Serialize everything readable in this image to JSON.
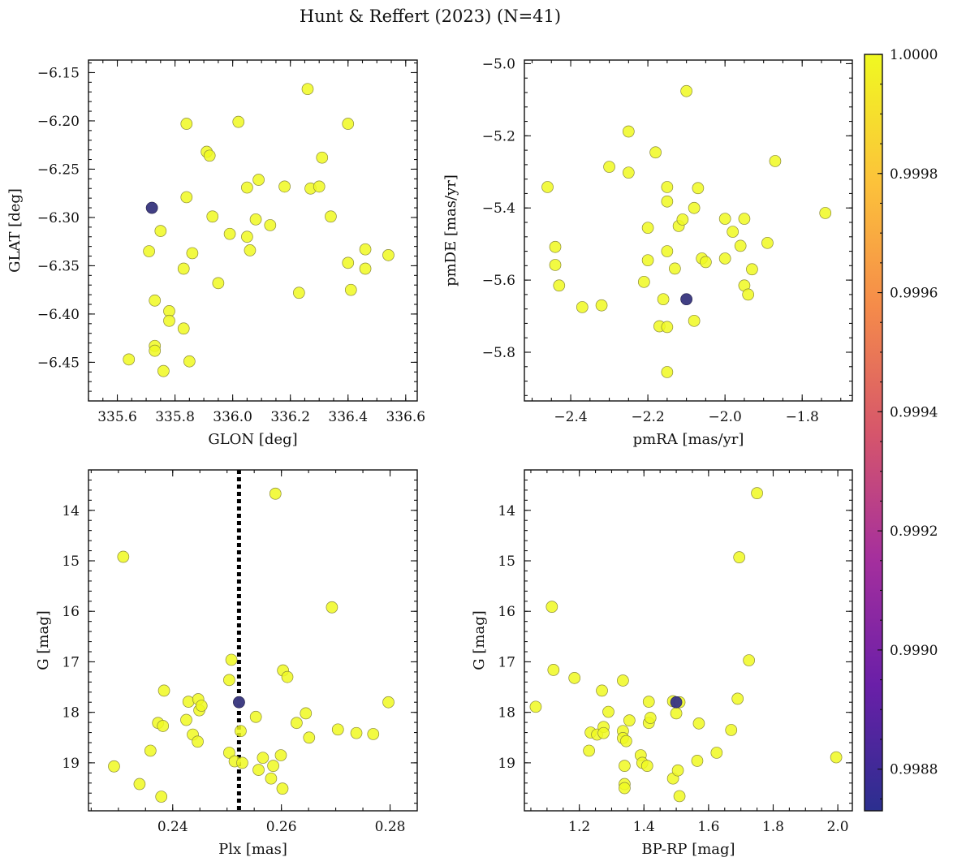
{
  "figure": {
    "title": "Hunt & Reffert (2023) (N=41)"
  },
  "colors": {
    "member": "#f0f921",
    "low": "#2d2a8c",
    "cmap": [
      "#2b2f8f",
      "#6a1fa8",
      "#a52f9d",
      "#d6566b",
      "#f58b4a",
      "#fcc33a",
      "#f0f921"
    ]
  },
  "colorbar": {
    "min": 0.99873,
    "max": 1.0,
    "ticks": [
      "0.9988",
      "0.9990",
      "0.9992",
      "0.9994",
      "0.9996",
      "0.9998",
      "1.0000"
    ]
  },
  "chart_data": [
    {
      "type": "scatter",
      "xlabel": "GLON [deg]",
      "ylabel": "GLAT [deg]",
      "xlim": [
        335.5,
        336.64
      ],
      "ylim": [
        -6.49,
        -6.137
      ],
      "y_inverted": false,
      "xticks": [
        335.6,
        335.8,
        336.0,
        336.2,
        336.4,
        336.6
      ],
      "xtick_labels": [
        "335.6",
        "335.8",
        "336.0",
        "336.2",
        "336.4",
        "336.6"
      ],
      "yticks": [
        -6.15,
        -6.2,
        -6.25,
        -6.3,
        -6.35,
        -6.4,
        -6.45
      ],
      "ytick_labels": [
        "−6.15",
        "−6.20",
        "−6.25",
        "−6.30",
        "−6.35",
        "−6.40",
        "−6.45"
      ],
      "points": [
        [
          335.64,
          -6.447
        ],
        [
          335.71,
          -6.335
        ],
        [
          335.72,
          -6.29
        ],
        [
          335.73,
          -6.386
        ],
        [
          335.73,
          -6.433
        ],
        [
          335.73,
          -6.438
        ],
        [
          335.75,
          -6.314
        ],
        [
          335.76,
          -6.459
        ],
        [
          335.78,
          -6.397
        ],
        [
          335.78,
          -6.407
        ],
        [
          335.83,
          -6.353
        ],
        [
          335.83,
          -6.415
        ],
        [
          335.84,
          -6.279
        ],
        [
          335.84,
          -6.203
        ],
        [
          335.85,
          -6.449
        ],
        [
          335.86,
          -6.337
        ],
        [
          335.91,
          -6.232
        ],
        [
          335.92,
          -6.236
        ],
        [
          335.93,
          -6.299
        ],
        [
          335.95,
          -6.368
        ],
        [
          335.99,
          -6.317
        ],
        [
          336.02,
          -6.201
        ],
        [
          336.05,
          -6.269
        ],
        [
          336.05,
          -6.32
        ],
        [
          336.06,
          -6.334
        ],
        [
          336.08,
          -6.302
        ],
        [
          336.09,
          -6.261
        ],
        [
          336.13,
          -6.308
        ],
        [
          336.18,
          -6.268
        ],
        [
          336.23,
          -6.378
        ],
        [
          336.26,
          -6.167
        ],
        [
          336.27,
          -6.27
        ],
        [
          336.3,
          -6.268
        ],
        [
          336.31,
          -6.238
        ],
        [
          336.34,
          -6.299
        ],
        [
          336.4,
          -6.203
        ],
        [
          336.4,
          -6.347
        ],
        [
          336.41,
          -6.375
        ],
        [
          336.46,
          -6.333
        ],
        [
          336.46,
          -6.353
        ],
        [
          336.54,
          -6.339
        ]
      ],
      "low_points": [
        [
          335.72,
          -6.29
        ]
      ]
    },
    {
      "type": "scatter",
      "xlabel": "pmRA [mas/yr]",
      "ylabel": "pmDE [mas/yr]",
      "xlim": [
        -2.52,
        -1.67
      ],
      "ylim": [
        -5.935,
        -4.99
      ],
      "y_inverted": false,
      "xticks": [
        -2.4,
        -2.2,
        -2.0,
        -1.8
      ],
      "xtick_labels": [
        "−2.4",
        "−2.2",
        "−2.0",
        "−1.8"
      ],
      "yticks": [
        -5.0,
        -5.2,
        -5.4,
        -5.6,
        -5.8
      ],
      "ytick_labels": [
        "−5.0",
        "−5.2",
        "−5.4",
        "−5.6",
        "−5.8"
      ],
      "points": [
        [
          -2.46,
          -5.342
        ],
        [
          -2.44,
          -5.508
        ],
        [
          -2.44,
          -5.558
        ],
        [
          -2.43,
          -5.615
        ],
        [
          -2.37,
          -5.675
        ],
        [
          -2.32,
          -5.67
        ],
        [
          -2.3,
          -5.286
        ],
        [
          -2.25,
          -5.188
        ],
        [
          -2.25,
          -5.302
        ],
        [
          -2.21,
          -5.605
        ],
        [
          -2.2,
          -5.455
        ],
        [
          -2.2,
          -5.545
        ],
        [
          -2.18,
          -5.246
        ],
        [
          -2.17,
          -5.728
        ],
        [
          -2.16,
          -5.653
        ],
        [
          -2.15,
          -5.342
        ],
        [
          -2.15,
          -5.382
        ],
        [
          -2.15,
          -5.52
        ],
        [
          -2.15,
          -5.73
        ],
        [
          -2.15,
          -5.855
        ],
        [
          -2.13,
          -5.568
        ],
        [
          -2.12,
          -5.45
        ],
        [
          -2.11,
          -5.432
        ],
        [
          -2.1,
          -5.653
        ],
        [
          -2.1,
          -5.076
        ],
        [
          -2.08,
          -5.4
        ],
        [
          -2.08,
          -5.713
        ],
        [
          -2.07,
          -5.345
        ],
        [
          -2.06,
          -5.54
        ],
        [
          -2.05,
          -5.55
        ],
        [
          -2.0,
          -5.43
        ],
        [
          -2.0,
          -5.54
        ],
        [
          -1.98,
          -5.466
        ],
        [
          -1.96,
          -5.505
        ],
        [
          -1.95,
          -5.615
        ],
        [
          -1.95,
          -5.43
        ],
        [
          -1.94,
          -5.64
        ],
        [
          -1.93,
          -5.57
        ],
        [
          -1.89,
          -5.497
        ],
        [
          -1.87,
          -5.27
        ],
        [
          -1.74,
          -5.414
        ]
      ],
      "low_points": [
        [
          -2.1,
          -5.653
        ]
      ]
    },
    {
      "type": "scatter",
      "xlabel": "Plx [mas]",
      "ylabel": "G [mag]",
      "xlim": [
        0.2245,
        0.285
      ],
      "ylim": [
        13.2,
        19.95
      ],
      "y_inverted": true,
      "xticks": [
        0.24,
        0.26,
        0.28
      ],
      "xtick_labels": [
        "0.24",
        "0.26",
        "0.28"
      ],
      "yticks": [
        14,
        15,
        16,
        17,
        18,
        19
      ],
      "ytick_labels": [
        "14",
        "15",
        "16",
        "17",
        "18",
        "19"
      ],
      "vline": {
        "x": 0.2522,
        "style": "dotted"
      },
      "points": [
        [
          0.2292,
          19.07
        ],
        [
          0.2309,
          14.92
        ],
        [
          0.2339,
          19.42
        ],
        [
          0.2359,
          18.76
        ],
        [
          0.2379,
          19.67
        ],
        [
          0.2373,
          18.21
        ],
        [
          0.2382,
          18.27
        ],
        [
          0.2384,
          17.57
        ],
        [
          0.2425,
          18.15
        ],
        [
          0.2429,
          17.79
        ],
        [
          0.2437,
          18.44
        ],
        [
          0.2446,
          18.58
        ],
        [
          0.2447,
          17.74
        ],
        [
          0.2449,
          17.96
        ],
        [
          0.2453,
          17.87
        ],
        [
          0.2504,
          17.36
        ],
        [
          0.2504,
          18.8
        ],
        [
          0.2508,
          16.96
        ],
        [
          0.2514,
          18.97
        ],
        [
          0.2522,
          17.8
        ],
        [
          0.2525,
          18.37
        ],
        [
          0.2528,
          19.0
        ],
        [
          0.2553,
          18.09
        ],
        [
          0.2558,
          19.14
        ],
        [
          0.2566,
          18.9
        ],
        [
          0.2581,
          19.31
        ],
        [
          0.2585,
          19.06
        ],
        [
          0.2589,
          13.67
        ],
        [
          0.2599,
          18.85
        ],
        [
          0.2603,
          17.17
        ],
        [
          0.2602,
          19.51
        ],
        [
          0.2611,
          17.3
        ],
        [
          0.2628,
          18.21
        ],
        [
          0.2645,
          18.02
        ],
        [
          0.2651,
          18.5
        ],
        [
          0.2693,
          15.92
        ],
        [
          0.2704,
          18.34
        ],
        [
          0.2738,
          18.41
        ],
        [
          0.2769,
          18.43
        ],
        [
          0.2797,
          17.8
        ]
      ],
      "low_points": [
        [
          0.2522,
          17.8
        ]
      ]
    },
    {
      "type": "scatter",
      "xlabel": "BP-RP [mag]",
      "ylabel": "G [mag]",
      "xlim": [
        1.03,
        2.045
      ],
      "ylim": [
        13.2,
        19.95
      ],
      "y_inverted": true,
      "xticks": [
        1.2,
        1.4,
        1.6,
        1.8,
        2.0
      ],
      "xtick_labels": [
        "1.2",
        "1.4",
        "1.6",
        "1.8",
        "2.0"
      ],
      "yticks": [
        14,
        15,
        16,
        17,
        18,
        19
      ],
      "ytick_labels": [
        "14",
        "15",
        "16",
        "17",
        "18",
        "19"
      ],
      "points": [
        [
          1.065,
          17.89
        ],
        [
          1.115,
          15.91
        ],
        [
          1.12,
          17.16
        ],
        [
          1.185,
          17.32
        ],
        [
          1.23,
          18.76
        ],
        [
          1.235,
          18.4
        ],
        [
          1.255,
          18.44
        ],
        [
          1.27,
          17.57
        ],
        [
          1.275,
          18.29
        ],
        [
          1.275,
          18.41
        ],
        [
          1.29,
          17.99
        ],
        [
          1.335,
          17.37
        ],
        [
          1.335,
          18.37
        ],
        [
          1.335,
          18.51
        ],
        [
          1.34,
          19.06
        ],
        [
          1.34,
          19.42
        ],
        [
          1.34,
          19.5
        ],
        [
          1.345,
          18.57
        ],
        [
          1.355,
          18.16
        ],
        [
          1.39,
          18.85
        ],
        [
          1.395,
          19.0
        ],
        [
          1.41,
          19.06
        ],
        [
          1.415,
          17.79
        ],
        [
          1.415,
          18.21
        ],
        [
          1.42,
          18.11
        ],
        [
          1.49,
          17.78
        ],
        [
          1.49,
          19.31
        ],
        [
          1.5,
          18.02
        ],
        [
          1.505,
          19.15
        ],
        [
          1.51,
          19.66
        ],
        [
          1.51,
          17.8
        ],
        [
          1.565,
          18.96
        ],
        [
          1.57,
          18.22
        ],
        [
          1.625,
          18.8
        ],
        [
          1.67,
          18.35
        ],
        [
          1.69,
          17.73
        ],
        [
          1.695,
          14.93
        ],
        [
          1.725,
          16.97
        ],
        [
          1.75,
          13.66
        ],
        [
          1.995,
          18.89
        ]
      ],
      "low_points": [
        [
          1.5,
          17.8
        ]
      ]
    }
  ]
}
